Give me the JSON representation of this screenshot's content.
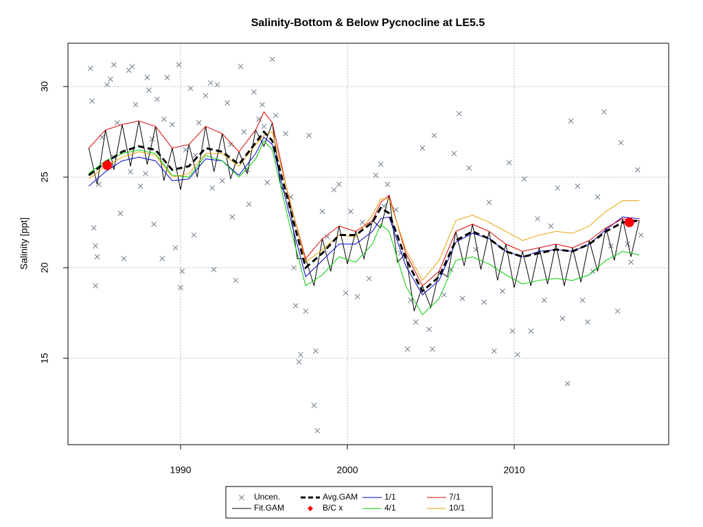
{
  "chart_data": {
    "type": "line",
    "title": "Salinity-Bottom & Below Pycnocline at LE5.5",
    "ylabel": "Salinity [ppt]",
    "xlim": [
      1983.25,
      2019.26
    ],
    "xticks": [
      1990,
      2000,
      2010
    ],
    "ylim": [
      10.23,
      32.39
    ],
    "yticks": [
      15,
      20,
      25,
      30
    ],
    "grid": true,
    "legend": "bottom",
    "series": [
      {
        "name": "Uncen.",
        "style": "points",
        "color": "#6c7b8b",
        "x": [
          1984.6,
          1984.7,
          1984.8,
          1984.9,
          1985.0,
          1984.9,
          1985.3,
          1985.6,
          1985.8,
          1986.0,
          1986.2,
          1986.4,
          1986.6,
          1986.9,
          1987.1,
          1987.3,
          1987.6,
          1987.9,
          1988.0,
          1988.1,
          1988.4,
          1988.6,
          1988.9,
          1989.2,
          1989.5,
          1989.7,
          1989.9,
          1990.1,
          1990.0,
          1990.3,
          1990.6,
          1990.8,
          1991.1,
          1991.5,
          1991.8,
          1992.0,
          1992.2,
          1992.5,
          1992.8,
          1993.1,
          1993.3,
          1993.6,
          1993.8,
          1994.1,
          1994.4,
          1994.7,
          1994.9,
          1995.2,
          1995.5,
          1995.7,
          1996.3,
          1996.6,
          1996.8,
          1996.9,
          1997.2,
          1997.1,
          1997.5,
          1997.7,
          1998.0,
          1998.2,
          1998.1,
          1998.5,
          1998.8,
          1999.2,
          1999.5,
          1999.9,
          2000.2,
          2000.6,
          2000.9,
          2001.3,
          2001.7,
          2002.0,
          2002.2,
          2002.4,
          2002.9,
          2003.2,
          2003.6,
          2003.8,
          2004.1,
          2004.5,
          2004.9,
          2005.2,
          2005.1,
          2005.8,
          2006.2,
          2006.4,
          2006.7,
          2006.9,
          2007.3,
          2007.7,
          2008.2,
          2008.5,
          2008.8,
          2009.3,
          2009.7,
          2009.9,
          2010.2,
          2010.6,
          2011.0,
          2011.4,
          2011.8,
          2012.2,
          2012.6,
          2012.9,
          2013.2,
          2013.4,
          2013.8,
          2014.1,
          2014.4,
          2014.7,
          2015.0,
          2015.4,
          2015.8,
          2016.2,
          2016.4,
          2016.8,
          2017.0,
          2017.4,
          2017.6,
          1985.1,
          1986.0,
          1987.0,
          1988.3,
          1989.0,
          1990.9,
          1991.9,
          1993.0,
          1994.0,
          1995.0
        ],
        "values": [
          31.0,
          29.2,
          22.2,
          21.2,
          20.6,
          19.0,
          27.2,
          30.1,
          30.4,
          31.2,
          28.0,
          23.0,
          20.5,
          30.9,
          31.1,
          29.0,
          24.5,
          25.2,
          30.5,
          29.8,
          22.4,
          29.3,
          20.5,
          30.5,
          27.9,
          21.1,
          31.2,
          19.8,
          18.9,
          26.5,
          29.9,
          21.8,
          28.0,
          29.5,
          30.2,
          19.9,
          30.1,
          24.8,
          29.1,
          22.8,
          19.3,
          31.1,
          27.5,
          23.5,
          29.7,
          28.2,
          29.0,
          24.7,
          31.5,
          28.4,
          27.4,
          23.9,
          20.0,
          17.9,
          15.2,
          14.8,
          17.6,
          27.3,
          12.4,
          11.0,
          15.4,
          23.1,
          21.7,
          24.3,
          24.6,
          18.6,
          23.1,
          18.4,
          22.5,
          19.4,
          25.1,
          25.7,
          23.4,
          24.6,
          23.2,
          20.8,
          15.5,
          18.2,
          17.0,
          26.6,
          16.6,
          27.3,
          15.5,
          18.5,
          19.9,
          26.3,
          28.5,
          18.3,
          25.5,
          21.0,
          18.1,
          23.6,
          15.4,
          18.7,
          25.8,
          16.5,
          15.2,
          24.9,
          16.5,
          22.7,
          18.2,
          22.3,
          24.4,
          17.2,
          13.6,
          28.1,
          24.5,
          18.2,
          17.0,
          19.8,
          23.9,
          28.6,
          21.2,
          17.6,
          26.9,
          21.3,
          20.3,
          25.4,
          21.8,
          24.6,
          26.1,
          25.3,
          27.1,
          28.2,
          26.2,
          24.4,
          26.8,
          25.4,
          27.8
        ]
      },
      {
        "name": "Fit.GAM",
        "style": "line",
        "color": "#000000",
        "x": [
          1984.5,
          1985.0,
          1985.5,
          1986.0,
          1986.5,
          1987.0,
          1987.5,
          1988.0,
          1988.5,
          1989.0,
          1989.5,
          1990.0,
          1990.5,
          1991.0,
          1991.5,
          1992.0,
          1992.5,
          1993.0,
          1993.5,
          1994.0,
          1994.5,
          1995.0,
          1995.5,
          1996.0,
          1996.5,
          1997.0,
          1997.5,
          1998.0,
          1998.5,
          1999.0,
          1999.5,
          2000.0,
          2000.5,
          2001.0,
          2001.5,
          2002.0,
          2002.5,
          2003.0,
          2003.5,
          2004.0,
          2004.5,
          2005.0,
          2005.5,
          2006.0,
          2006.5,
          2007.0,
          2007.5,
          2008.0,
          2008.5,
          2009.0,
          2009.5,
          2010.0,
          2010.5,
          2011.0,
          2011.5,
          2012.0,
          2012.5,
          2013.0,
          2013.5,
          2014.0,
          2014.5,
          2015.0,
          2015.5,
          2016.0,
          2016.5,
          2017.0,
          2017.5
        ],
        "values": [
          26.6,
          24.6,
          27.6,
          25.4,
          27.9,
          25.6,
          28.1,
          25.7,
          27.8,
          24.8,
          26.6,
          24.3,
          26.8,
          25.0,
          27.8,
          25.3,
          27.4,
          24.9,
          26.4,
          25.2,
          27.6,
          26.7,
          28.0,
          24.5,
          23.8,
          20.5,
          20.5,
          19.0,
          21.6,
          19.8,
          22.3,
          20.2,
          22.0,
          20.5,
          22.6,
          22.2,
          24.0,
          20.3,
          20.8,
          17.6,
          19.0,
          17.8,
          19.8,
          19.5,
          22.0,
          20.1,
          22.4,
          19.9,
          22.0,
          19.3,
          21.3,
          18.9,
          20.9,
          19.0,
          21.1,
          19.1,
          21.3,
          19.0,
          21.1,
          19.2,
          21.5,
          19.8,
          22.2,
          20.4,
          22.7,
          20.6,
          22.6
        ]
      },
      {
        "name": "Avg.GAM",
        "style": "dashed",
        "color": "#000000",
        "x": [
          1984.5,
          1985.5,
          1986.5,
          1987.5,
          1988.5,
          1989.5,
          1990.5,
          1991.5,
          1992.5,
          1993.5,
          1994.5,
          1995.0,
          1995.5,
          1996.5,
          1997.5,
          1998.5,
          1999.5,
          2000.5,
          2001.5,
          2002.0,
          2002.5,
          2003.5,
          2004.5,
          2005.5,
          2006.5,
          2007.5,
          2008.5,
          2009.5,
          2010.5,
          2011.5,
          2012.5,
          2013.5,
          2014.5,
          2015.5,
          2016.5,
          2017.5
        ],
        "values": [
          25.1,
          25.8,
          26.4,
          26.7,
          26.5,
          25.4,
          25.6,
          26.6,
          26.4,
          25.7,
          26.9,
          27.5,
          27.0,
          23.5,
          20.0,
          20.8,
          21.8,
          21.8,
          22.5,
          23.3,
          23.0,
          20.5,
          18.7,
          19.5,
          21.5,
          22.0,
          21.6,
          20.9,
          20.6,
          20.8,
          21.0,
          20.9,
          21.3,
          22.0,
          22.5,
          22.6
        ]
      },
      {
        "name": "B/C x",
        "style": "dots",
        "color": "#ff0000",
        "x": [
          1985.6,
          2016.9
        ],
        "values": [
          25.65,
          22.5
        ]
      },
      {
        "name": "1/1",
        "style": "line",
        "color": "#0000cc",
        "x": [
          1984.5,
          1985.5,
          1986.5,
          1987.5,
          1988.5,
          1989.5,
          1990.5,
          1991.5,
          1992.5,
          1993.5,
          1994.5,
          1995.0,
          1995.5,
          1996.5,
          1997.5,
          1998.5,
          1999.5,
          2000.5,
          2001.5,
          2002.0,
          2002.5,
          2003.5,
          2004.5,
          2005.5,
          2006.5,
          2007.5,
          2008.5,
          2009.5,
          2010.5,
          2011.5,
          2012.5,
          2013.5,
          2014.5,
          2015.5,
          2016.5,
          2017.5
        ],
        "values": [
          24.5,
          25.3,
          25.9,
          26.1,
          25.9,
          24.8,
          24.9,
          26.0,
          25.9,
          25.1,
          26.3,
          27.2,
          26.8,
          23.0,
          19.5,
          20.4,
          21.3,
          21.3,
          22.0,
          22.7,
          22.8,
          20.1,
          18.5,
          19.3,
          21.4,
          21.9,
          21.6,
          20.9,
          20.6,
          20.9,
          21.0,
          20.9,
          21.3,
          22.1,
          22.8,
          22.7
        ]
      },
      {
        "name": "4/1",
        "style": "line",
        "color": "#00cc00",
        "x": [
          1984.5,
          1985.5,
          1986.5,
          1987.5,
          1988.5,
          1989.5,
          1990.5,
          1991.5,
          1992.5,
          1993.5,
          1994.5,
          1995.0,
          1995.5,
          1996.5,
          1997.5,
          1998.5,
          1999.5,
          2000.5,
          2001.5,
          2002.0,
          2002.5,
          2003.5,
          2004.5,
          2005.5,
          2006.5,
          2007.5,
          2008.5,
          2009.5,
          2010.5,
          2011.5,
          2012.5,
          2013.5,
          2014.5,
          2015.5,
          2016.5,
          2017.5
        ],
        "values": [
          25.2,
          25.9,
          26.3,
          26.5,
          26.3,
          25.1,
          25.0,
          26.2,
          25.9,
          25.0,
          26.0,
          27.0,
          26.5,
          22.5,
          19.0,
          19.6,
          20.6,
          20.3,
          21.3,
          22.4,
          22.0,
          19.0,
          17.4,
          18.3,
          20.4,
          20.6,
          20.2,
          19.6,
          19.1,
          19.3,
          19.4,
          19.3,
          19.6,
          20.4,
          20.9,
          20.7
        ]
      },
      {
        "name": "7/1",
        "style": "line",
        "color": "#dd0000",
        "x": [
          1984.5,
          1985.5,
          1986.5,
          1987.5,
          1988.5,
          1989.5,
          1990.5,
          1991.5,
          1992.5,
          1993.5,
          1994.5,
          1995.0,
          1995.5,
          1996.5,
          1997.5,
          1998.5,
          1999.5,
          2000.5,
          2001.5,
          2002.0,
          2002.5,
          2003.5,
          2004.5,
          2005.5,
          2006.5,
          2007.5,
          2008.5,
          2009.5,
          2010.5,
          2011.5,
          2012.5,
          2013.5,
          2014.5,
          2015.5,
          2016.5,
          2017.5
        ],
        "values": [
          26.6,
          27.6,
          27.9,
          28.1,
          27.8,
          26.6,
          26.8,
          27.8,
          27.4,
          26.4,
          27.6,
          28.6,
          28.0,
          23.8,
          20.5,
          21.6,
          22.3,
          22.0,
          22.6,
          23.6,
          24.0,
          20.8,
          19.0,
          19.8,
          22.0,
          22.4,
          22.0,
          21.3,
          20.9,
          21.1,
          21.3,
          21.1,
          21.5,
          22.2,
          22.7,
          22.6
        ]
      },
      {
        "name": "10/1",
        "style": "line",
        "color": "#e8a000",
        "x": [
          1984.5,
          1985.5,
          1986.5,
          1987.5,
          1988.5,
          1989.5,
          1990.5,
          1991.5,
          1992.5,
          1993.5,
          1994.5,
          1995.0,
          1995.5,
          1996.5,
          1997.5,
          1998.5,
          1999.5,
          2000.5,
          2001.5,
          2002.0,
          2002.5,
          2003.5,
          2004.5,
          2005.5,
          2006.5,
          2007.5,
          2008.5,
          2009.5,
          2010.5,
          2011.5,
          2012.5,
          2013.5,
          2014.5,
          2015.5,
          2016.5,
          2017.5
        ],
        "values": [
          24.9,
          25.6,
          26.1,
          26.4,
          26.2,
          25.0,
          25.2,
          26.3,
          26.3,
          25.6,
          26.8,
          27.3,
          27.5,
          23.9,
          20.3,
          21.0,
          21.8,
          21.7,
          22.9,
          23.8,
          23.8,
          21.0,
          19.3,
          20.4,
          22.6,
          22.9,
          22.5,
          22.0,
          21.5,
          21.8,
          22.0,
          21.9,
          22.3,
          23.1,
          23.7,
          23.7
        ]
      }
    ]
  }
}
